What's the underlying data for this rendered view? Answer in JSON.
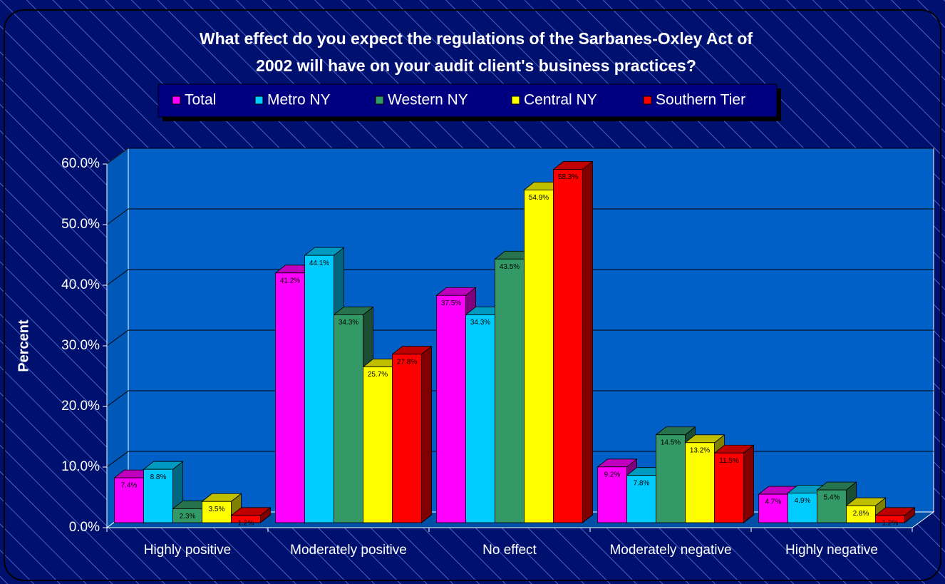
{
  "chart_data": {
    "type": "bar3d",
    "title": "What effect do you expect the regulations of the Sarbanes-Oxley Act of 2002 will have on your audit client's business practices?",
    "title_lines": [
      "What effect do you expect the regulations of the Sarbanes-Oxley Act of",
      "2002 will have on your audit client's business practices?"
    ],
    "y_label": "Percent",
    "categories": [
      "Highly positive",
      "Moderately positive",
      "No effect",
      "Moderately negative",
      "Highly negative"
    ],
    "series": [
      {
        "name": "Total",
        "color": "#ff00ff",
        "values": [
          7.4,
          41.2,
          37.5,
          9.2,
          4.7
        ],
        "value_labels": [
          "7.4%",
          "41.2%",
          "37.5%",
          "9.2%",
          "4.7%"
        ]
      },
      {
        "name": "Metro NY",
        "color": "#00ccff",
        "values": [
          8.8,
          44.1,
          34.3,
          7.8,
          4.9
        ],
        "value_labels": [
          "8.8%",
          "44.1%",
          "34.3%",
          "7.8%",
          "4.9%"
        ]
      },
      {
        "name": "Western NY",
        "color": "#339966",
        "values": [
          2.3,
          34.3,
          43.5,
          14.5,
          5.4
        ],
        "value_labels": [
          "2.3%",
          "34.3%",
          "43.5%",
          "14.5%",
          "5.4%"
        ]
      },
      {
        "name": "Central NY",
        "color": "#ffff00",
        "values": [
          3.5,
          25.7,
          54.9,
          13.2,
          2.8
        ],
        "value_labels": [
          "3.5%",
          "25.7%",
          "54.9%",
          "13.2%",
          "2.8%"
        ]
      },
      {
        "name": "Southern Tier",
        "color": "#ff0000",
        "values": [
          1.2,
          27.8,
          58.3,
          11.5,
          1.2
        ],
        "value_labels": [
          "1.2%",
          "27.8%",
          "58.3%",
          "11.5%",
          "1.2%"
        ]
      }
    ],
    "ylim": [
      0,
      60
    ],
    "yticks": [
      {
        "value": 0,
        "label": "0.0%"
      },
      {
        "value": 10,
        "label": "10.0%"
      },
      {
        "value": 20,
        "label": "20.0%"
      },
      {
        "value": 30,
        "label": "30.0%"
      },
      {
        "value": 40,
        "label": "40.0%"
      },
      {
        "value": 50,
        "label": "50.0%"
      },
      {
        "value": 60,
        "label": "60.0%"
      }
    ],
    "grid": true,
    "legend": "top"
  }
}
